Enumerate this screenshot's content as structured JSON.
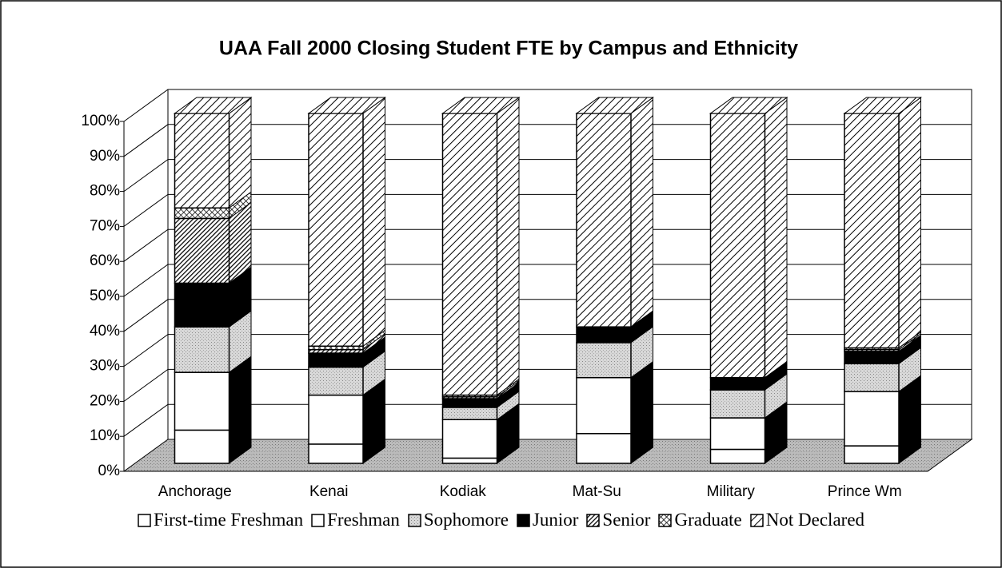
{
  "chart_data": {
    "type": "bar3d_stacked_percent",
    "title": "UAA Fall 2000 Closing Student FTE by Campus and Ethnicity",
    "categories": [
      "Anchorage",
      "Kenai",
      "Kodiak",
      "Mat-Su",
      "Military",
      "Prince Wm"
    ],
    "series": [
      {
        "name": "First-time Freshman",
        "color": "#ffffff",
        "pattern": "solid",
        "values": [
          9.5,
          5.5,
          1.5,
          8.5,
          4,
          5
        ]
      },
      {
        "name": "Freshman",
        "color": "#ffffff",
        "pattern": "solid",
        "values": [
          16.5,
          14,
          11,
          16,
          9,
          15.5
        ]
      },
      {
        "name": "Sophomore",
        "color": "#d4d4d4",
        "pattern": "speckle",
        "values": [
          13,
          8,
          3.5,
          10,
          8,
          8
        ]
      },
      {
        "name": "Junior",
        "color": "#000000",
        "pattern": "solid",
        "values": [
          12.5,
          4,
          2.5,
          4.5,
          3.5,
          3.5
        ]
      },
      {
        "name": "Senior",
        "color": "#000000",
        "pattern": "dense-hatch",
        "values": [
          18.5,
          1,
          0.5,
          0,
          0,
          0.5
        ]
      },
      {
        "name": "Graduate",
        "color": "#000000",
        "pattern": "cross",
        "values": [
          3,
          1,
          0.5,
          0,
          0,
          0.5
        ]
      },
      {
        "name": "Not Declared",
        "color": "#000000",
        "pattern": "hatch",
        "values": [
          27,
          66.5,
          80.5,
          61,
          75.5,
          67
        ]
      }
    ],
    "ylim": [
      0,
      100
    ],
    "yticks": [
      {
        "value": 0,
        "label": "0%"
      },
      {
        "value": 10,
        "label": "10%"
      },
      {
        "value": 20,
        "label": "20%"
      },
      {
        "value": 30,
        "label": "30%"
      },
      {
        "value": 40,
        "label": "40%"
      },
      {
        "value": 50,
        "label": "50%"
      },
      {
        "value": 60,
        "label": "60%"
      },
      {
        "value": 70,
        "label": "70%"
      },
      {
        "value": 80,
        "label": "80%"
      },
      {
        "value": 90,
        "label": "90%"
      },
      {
        "value": 100,
        "label": "100%"
      }
    ],
    "grid": true,
    "legend": "bottom"
  }
}
